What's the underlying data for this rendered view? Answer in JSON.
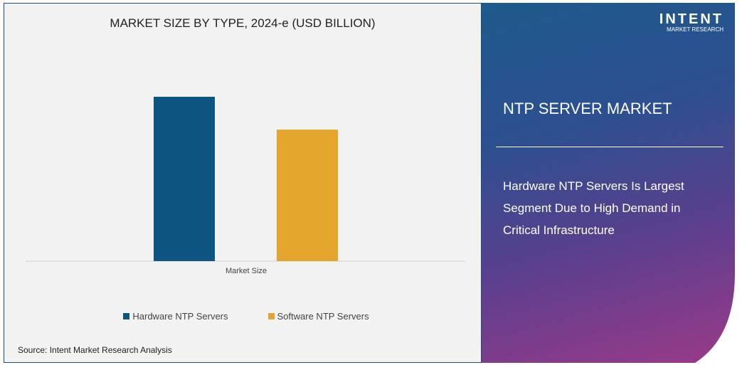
{
  "chart_data": {
    "type": "bar",
    "title": "MARKET SIZE BY TYPE, 2024-e (USD BILLION)",
    "categories": [
      "Market Size"
    ],
    "series": [
      {
        "name": "Hardware NTP Servers",
        "values": [
          100
        ],
        "color": "#0e5480"
      },
      {
        "name": "Software NTP Servers",
        "values": [
          80
        ],
        "color": "#e3a52c"
      }
    ],
    "value_note_relative": true,
    "ylim": [
      0,
      100
    ],
    "grid": false,
    "legend": "bottom",
    "source": "Source: Intent Market Research Analysis"
  },
  "panel": {
    "logo_main": "INTENT",
    "logo_sub": "MARKET RESEARCH",
    "title": "NTP SERVER MARKET",
    "text": "Hardware NTP Servers Is Largest Segment Due to High Demand in Critical Infrastructure"
  }
}
